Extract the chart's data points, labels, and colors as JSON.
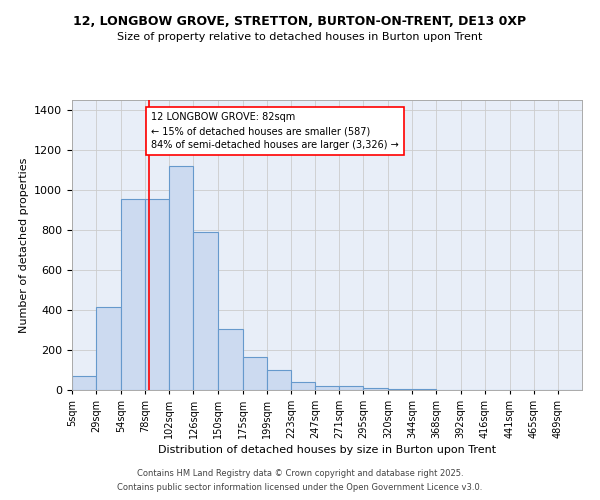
{
  "title": "12, LONGBOW GROVE, STRETTON, BURTON-ON-TRENT, DE13 0XP",
  "subtitle": "Size of property relative to detached houses in Burton upon Trent",
  "xlabel": "Distribution of detached houses by size in Burton upon Trent",
  "ylabel": "Number of detached properties",
  "bar_labels": [
    "5sqm",
    "29sqm",
    "54sqm",
    "78sqm",
    "102sqm",
    "126sqm",
    "150sqm",
    "175sqm",
    "199sqm",
    "223sqm",
    "247sqm",
    "271sqm",
    "295sqm",
    "320sqm",
    "344sqm",
    "368sqm",
    "392sqm",
    "416sqm",
    "441sqm",
    "465sqm",
    "489sqm"
  ],
  "bar_values": [
    70,
    415,
    955,
    955,
    1120,
    790,
    305,
    165,
    100,
    38,
    22,
    18,
    12,
    7,
    3,
    0,
    0,
    0,
    0,
    0,
    0
  ],
  "bar_color": "#ccdaf0",
  "bar_edge_color": "#6699cc",
  "annotation_text": "12 LONGBOW GROVE: 82sqm\n← 15% of detached houses are smaller (587)\n84% of semi-detached houses are larger (3,326) →",
  "red_line_x": 82,
  "ylim": [
    0,
    1450
  ],
  "yticks": [
    0,
    200,
    400,
    600,
    800,
    1000,
    1200,
    1400
  ],
  "grid_color": "#cccccc",
  "bg_color": "#e8eef8",
  "footnote1": "Contains HM Land Registry data © Crown copyright and database right 2025.",
  "footnote2": "Contains public sector information licensed under the Open Government Licence v3.0."
}
